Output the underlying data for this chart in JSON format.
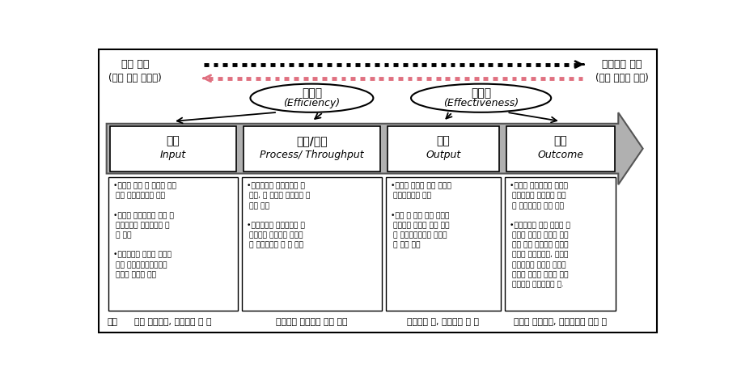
{
  "bg_color": "#ffffff",
  "title_top1": "측정 용이",
  "title_top2": "바람직한 지표",
  "title_top3": "(높은 통제 가능성)",
  "title_top4": "(통제 가능성 낮음)",
  "ellipse1_text1": "효율성",
  "ellipse1_text2": "(Efficiency)",
  "ellipse2_text1": "효과성",
  "ellipse2_text2": "(Effectiveness)",
  "box_labels_line1": [
    "투입",
    "활동/과정",
    "산출",
    "결과"
  ],
  "box_labels_line2": [
    "Input",
    "Process/ Throughput",
    "Output",
    "Outcome"
  ],
  "content_texts": [
    "•필요한 재원 및 인력이 계획\n 대로 집행되었는지 평가\n\n•사업의 최종산출을 위한 중\n 간투입물의 목표달성에 대\n 한 평가\n\n•투입지표의 설정은 예산집\n 행과 사업추진과정에서의\n 문제점 발견이 목적",
    "•사업추진을 단계적으로 나\n 누어, 각 단계의 목표달성 여\n 부를 평가\n\n•과정지표는 사업추진의 중\n 간점검이 목적이며 궁극적\n 인 성과지표는 될 수 없음",
    "•사업이 목표한 최종 산출을\n 달성했는지를 평가\n\n•예산 및 인력 등의 투입에\n 비례하여 목표한 최종 산출\n 이 이루어졌는가를 평가하\n 는 것이 목적",
    "•사업의 최종산출을 통해서\n 궁극적으로 얻으려는 성과\n 의 달성여부에 대한 평가\n\n•결과지표는 특정 사업의 추\n 진으로 발생한 재화나 서비\n 스로 인한 상황이나 행동의\n 변화를 나타나는데, 이러한\n 결과지표는 사업의 성과목\n 표뿐만 아니라 넓게는 전략\n 목표와도 연결되어야 함."
  ],
  "example_label": "예시",
  "example_texts": [
    "연구 투입예산, 연구인원 수 등",
    "연구과제 효율적인 실행 정도",
    "연구과제 수, 학술발표 수 등",
    "학술지 게재실적, 연구산출을 활용 등"
  ]
}
